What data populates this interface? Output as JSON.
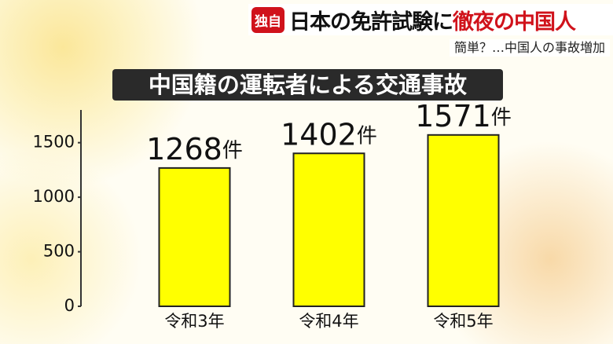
{
  "header": {
    "badge": "独自",
    "title_black": "日本の免許試験に",
    "title_red": "徹夜の中国人",
    "subtitle": "簡単？…中国人の事故増加"
  },
  "chart_data": {
    "type": "bar",
    "title": "中国籍の運転者による交通事故",
    "categories": [
      "令和3年",
      "令和4年",
      "令和5年"
    ],
    "values": [
      1268,
      1402,
      1571
    ],
    "value_labels": [
      "1268件",
      "1402件",
      "1571件"
    ],
    "color": "#ffff00",
    "ylim": [
      0,
      1800
    ],
    "yticks": [
      0,
      500,
      1000,
      1500
    ],
    "grid": false
  }
}
